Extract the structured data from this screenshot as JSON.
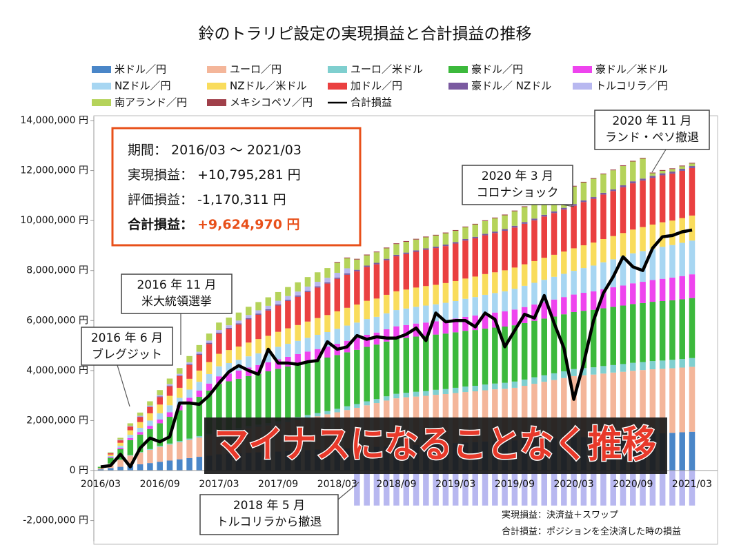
{
  "chart_data": {
    "type": "bar",
    "stacked": true,
    "title": "鈴のトラリピ設定の実現損益と合計損益の推移",
    "categories": [
      "2016/03",
      null,
      null,
      null,
      null,
      null,
      "2016/09",
      null,
      null,
      null,
      null,
      null,
      "2017/03",
      null,
      null,
      null,
      null,
      null,
      "2017/09",
      null,
      null,
      null,
      null,
      null,
      "2018/03",
      null,
      null,
      null,
      null,
      null,
      "2018/09",
      null,
      null,
      null,
      null,
      null,
      "2019/03",
      null,
      null,
      null,
      null,
      null,
      "2019/09",
      null,
      null,
      null,
      null,
      null,
      "2020/03",
      null,
      null,
      null,
      null,
      null,
      "2020/09",
      null,
      null,
      null,
      null,
      null,
      "2021/03"
    ],
    "ylim": [
      -2000000,
      14000000
    ],
    "yticks": [
      {
        "value": -2000000,
        "label": "-2,000,000 円"
      },
      {
        "value": 0,
        "label": "0 円"
      },
      {
        "value": 2000000,
        "label": "2,000,000 円"
      },
      {
        "value": 4000000,
        "label": "4,000,000 円"
      },
      {
        "value": 6000000,
        "label": "6,000,000 円"
      },
      {
        "value": 8000000,
        "label": "8,000,000 円"
      },
      {
        "value": 10000000,
        "label": "10,000,000 円"
      },
      {
        "value": 12000000,
        "label": "12,000,000 円"
      },
      {
        "value": 14000000,
        "label": "14,000,000 円"
      }
    ],
    "grid": false,
    "series": [
      {
        "name": "米ドル／円",
        "color": "#4a86c8",
        "values": [
          50000,
          100000,
          150000,
          200000,
          250000,
          300000,
          350000,
          400000,
          450000,
          500000,
          550000,
          600000,
          650000,
          670000,
          690000,
          710000,
          730000,
          740000,
          760000,
          780000,
          800000,
          820000,
          840000,
          860000,
          880000,
          890000,
          910000,
          930000,
          950000,
          970000,
          990000,
          1010000,
          1030000,
          1040000,
          1060000,
          1080000,
          1100000,
          1120000,
          1140000,
          1160000,
          1180000,
          1190000,
          1210000,
          1230000,
          1250000,
          1270000,
          1290000,
          1310000,
          1330000,
          1340000,
          1360000,
          1380000,
          1400000,
          1420000,
          1440000,
          1460000,
          1480000,
          1490000,
          1510000,
          1530000,
          1550000
        ]
      },
      {
        "name": "ユーロ／円",
        "color": "#f4b69a",
        "values": [
          50000,
          170000,
          280000,
          400000,
          470000,
          530000,
          600000,
          640000,
          680000,
          730000,
          770000,
          810000,
          850000,
          890000,
          930000,
          980000,
          1020000,
          1060000,
          1100000,
          1160000,
          1220000,
          1280000,
          1330000,
          1390000,
          1450000,
          1530000,
          1600000,
          1680000,
          1750000,
          1830000,
          1900000,
          1920000,
          1930000,
          1950000,
          1970000,
          1980000,
          2000000,
          2020000,
          2030000,
          2050000,
          2070000,
          2080000,
          2100000,
          2160000,
          2220000,
          2280000,
          2330000,
          2390000,
          2450000,
          2470000,
          2480000,
          2500000,
          2520000,
          2530000,
          2550000,
          2560000,
          2570000,
          2580000,
          2580000,
          2590000,
          2600000
        ]
      },
      {
        "name": "ユーロ／米ドル",
        "color": "#7fcfcf",
        "values": [
          0,
          10000,
          10000,
          20000,
          20000,
          30000,
          40000,
          40000,
          50000,
          50000,
          60000,
          60000,
          70000,
          80000,
          80000,
          90000,
          90000,
          100000,
          110000,
          110000,
          120000,
          120000,
          130000,
          130000,
          140000,
          150000,
          150000,
          160000,
          160000,
          170000,
          180000,
          180000,
          190000,
          190000,
          200000,
          200000,
          210000,
          220000,
          220000,
          230000,
          230000,
          240000,
          250000,
          250000,
          260000,
          260000,
          270000,
          270000,
          280000,
          290000,
          290000,
          300000,
          300000,
          310000,
          320000,
          320000,
          330000,
          330000,
          340000,
          340000,
          350000
        ]
      },
      {
        "name": "豪ドル／円",
        "color": "#3cb93c",
        "values": [
          50000,
          230000,
          420000,
          600000,
          700000,
          800000,
          900000,
          1070000,
          1230000,
          1400000,
          1570000,
          1730000,
          1900000,
          1930000,
          1970000,
          2000000,
          2030000,
          2070000,
          2100000,
          2110000,
          2120000,
          2130000,
          2130000,
          2140000,
          2150000,
          2160000,
          2170000,
          2180000,
          2180000,
          2190000,
          2200000,
          2200000,
          2210000,
          2210000,
          2210000,
          2220000,
          2220000,
          2230000,
          2230000,
          2240000,
          2240000,
          2250000,
          2250000,
          2260000,
          2260000,
          2270000,
          2270000,
          2280000,
          2280000,
          2290000,
          2300000,
          2310000,
          2330000,
          2340000,
          2350000,
          2360000,
          2370000,
          2380000,
          2380000,
          2390000,
          2400000
        ]
      },
      {
        "name": "豪ドル／米ドル",
        "color": "#ee44ee",
        "values": [
          0,
          30000,
          50000,
          80000,
          100000,
          130000,
          150000,
          180000,
          200000,
          230000,
          250000,
          280000,
          300000,
          310000,
          330000,
          340000,
          350000,
          360000,
          380000,
          390000,
          400000,
          410000,
          430000,
          440000,
          450000,
          460000,
          470000,
          480000,
          480000,
          490000,
          500000,
          510000,
          520000,
          530000,
          530000,
          540000,
          550000,
          560000,
          580000,
          590000,
          600000,
          610000,
          630000,
          640000,
          650000,
          660000,
          680000,
          690000,
          700000,
          720000,
          740000,
          760000,
          780000,
          800000,
          830000,
          850000,
          870000,
          890000,
          910000,
          930000,
          950000
        ]
      },
      {
        "name": "NZドル／円",
        "color": "#a7d6f2",
        "values": [
          0,
          40000,
          80000,
          130000,
          170000,
          210000,
          250000,
          280000,
          300000,
          330000,
          350000,
          380000,
          400000,
          420000,
          430000,
          450000,
          470000,
          480000,
          500000,
          520000,
          530000,
          550000,
          570000,
          580000,
          600000,
          610000,
          620000,
          630000,
          630000,
          640000,
          650000,
          660000,
          670000,
          680000,
          680000,
          690000,
          700000,
          720000,
          740000,
          760000,
          780000,
          800000,
          830000,
          850000,
          870000,
          890000,
          910000,
          930000,
          950000,
          990000,
          1030000,
          1080000,
          1120000,
          1160000,
          1200000,
          1230000,
          1250000,
          1280000,
          1300000,
          1330000,
          1350000
        ]
      },
      {
        "name": "NZドル／米ドル",
        "color": "#f9dc5c",
        "values": [
          0,
          60000,
          120000,
          180000,
          230000,
          290000,
          350000,
          380000,
          400000,
          430000,
          450000,
          480000,
          500000,
          520000,
          530000,
          550000,
          570000,
          580000,
          600000,
          620000,
          630000,
          650000,
          670000,
          680000,
          700000,
          710000,
          720000,
          730000,
          730000,
          740000,
          750000,
          760000,
          770000,
          780000,
          780000,
          790000,
          800000,
          810000,
          820000,
          830000,
          830000,
          840000,
          850000,
          860000,
          870000,
          880000,
          880000,
          890000,
          900000,
          910000,
          920000,
          930000,
          930000,
          940000,
          950000,
          960000,
          970000,
          980000,
          980000,
          990000,
          1000000
        ]
      },
      {
        "name": "加ドル／円",
        "color": "#ea4040",
        "values": [
          0,
          50000,
          100000,
          150000,
          200000,
          250000,
          300000,
          380000,
          470000,
          550000,
          630000,
          720000,
          800000,
          840000,
          880000,
          930000,
          970000,
          1010000,
          1050000,
          1090000,
          1130000,
          1180000,
          1220000,
          1260000,
          1300000,
          1320000,
          1330000,
          1350000,
          1370000,
          1380000,
          1400000,
          1420000,
          1430000,
          1450000,
          1470000,
          1480000,
          1500000,
          1520000,
          1530000,
          1550000,
          1570000,
          1580000,
          1600000,
          1620000,
          1630000,
          1650000,
          1670000,
          1680000,
          1700000,
          1730000,
          1750000,
          1780000,
          1800000,
          1830000,
          1850000,
          1860000,
          1870000,
          1880000,
          1880000,
          1890000,
          1900000
        ]
      },
      {
        "name": "豪ドル／ NZドル",
        "color": "#7a5aa0",
        "values": [
          0,
          0,
          10000,
          10000,
          20000,
          20000,
          30000,
          30000,
          30000,
          40000,
          40000,
          50000,
          50000,
          50000,
          50000,
          50000,
          50000,
          50000,
          50000,
          50000,
          50000,
          50000,
          50000,
          50000,
          50000,
          60000,
          60000,
          60000,
          60000,
          60000,
          60000,
          60000,
          60000,
          60000,
          60000,
          60000,
          60000,
          60000,
          60000,
          60000,
          60000,
          70000,
          70000,
          70000,
          70000,
          70000,
          70000,
          70000,
          70000,
          70000,
          70000,
          70000,
          70000,
          80000,
          80000,
          80000,
          80000,
          80000,
          80000,
          80000,
          80000
        ]
      },
      {
        "name": "トルコリラ／円",
        "color": "#b8b8f0",
        "values": [
          0,
          10000,
          20000,
          20000,
          30000,
          40000,
          50000,
          60000,
          60000,
          70000,
          80000,
          90000,
          100000,
          100000,
          110000,
          120000,
          130000,
          140000,
          140000,
          150000,
          160000,
          170000,
          180000,
          180000,
          190000,
          200000,
          -1400000,
          -1400000,
          -1400000,
          -1400000,
          -1400000,
          -1400000,
          -1400000,
          -1400000,
          -1400000,
          -1400000,
          -1400000,
          -1400000,
          -1400000,
          -1400000,
          -1400000,
          -1400000,
          -1400000,
          -1400000,
          -1400000,
          -1400000,
          -1400000,
          -1400000,
          -1400000,
          -1400000,
          -1400000,
          -1400000,
          -1400000,
          -1400000,
          -1400000,
          -1400000,
          -1400000,
          -1400000,
          -1400000,
          -1400000,
          -1400000
        ]
      },
      {
        "name": "南アランド／円",
        "color": "#b5d35a",
        "values": [
          0,
          30000,
          70000,
          100000,
          130000,
          170000,
          200000,
          220000,
          230000,
          250000,
          270000,
          280000,
          300000,
          310000,
          320000,
          330000,
          330000,
          340000,
          350000,
          360000,
          370000,
          380000,
          380000,
          390000,
          400000,
          400000,
          410000,
          410000,
          420000,
          420000,
          430000,
          430000,
          430000,
          440000,
          440000,
          450000,
          450000,
          470000,
          490000,
          510000,
          530000,
          550000,
          580000,
          600000,
          620000,
          640000,
          660000,
          680000,
          700000,
          710000,
          730000,
          740000,
          760000,
          770000,
          790000,
          800000,
          100000,
          100000,
          100000,
          100000,
          100000
        ]
      },
      {
        "name": "メキシコペソ／円",
        "color": "#a0404a",
        "values": [
          0,
          0,
          0,
          0,
          0,
          0,
          0,
          0,
          0,
          0,
          0,
          0,
          0,
          0,
          0,
          0,
          0,
          0,
          0,
          0,
          0,
          0,
          0,
          0,
          30000,
          30000,
          30000,
          30000,
          30000,
          30000,
          30000,
          30000,
          30000,
          30000,
          30000,
          30000,
          30000,
          30000,
          30000,
          30000,
          30000,
          30000,
          30000,
          30000,
          30000,
          30000,
          30000,
          30000,
          30000,
          30000,
          30000,
          30000,
          30000,
          30000,
          30000,
          30000,
          30000,
          30000,
          30000,
          30000,
          30000
        ]
      },
      {
        "name": "合計損益",
        "type": "line",
        "color": "#000000",
        "values": [
          150000,
          200000,
          650000,
          150000,
          900000,
          1300000,
          1150000,
          1350000,
          2700000,
          2700000,
          2650000,
          3000000,
          3500000,
          3950000,
          4200000,
          4000000,
          3850000,
          4850000,
          4300000,
          4300000,
          4250000,
          4350000,
          4400000,
          5150000,
          4850000,
          4950000,
          5400000,
          5250000,
          5350000,
          5300000,
          5300000,
          5450000,
          5700000,
          5200000,
          6300000,
          5950000,
          6000000,
          6000000,
          5750000,
          6300000,
          6050000,
          4950000,
          5600000,
          6250000,
          6100000,
          7000000,
          5900000,
          4900000,
          2850000,
          4300000,
          6000000,
          7100000,
          7750000,
          8550000,
          8150000,
          8000000,
          8900000,
          9350000,
          9400000,
          9550000,
          9620000
        ]
      }
    ],
    "summary": [
      {
        "label": "期間：",
        "value": "2016/03 ～ 2021/03"
      },
      {
        "label": "実現損益：",
        "value": "+10,795,281 円"
      },
      {
        "label": "評価損益：",
        "value": "-1,170,311 円"
      },
      {
        "label": "合計損益：",
        "value": "+9,624,970 円"
      }
    ],
    "callouts": [
      [
        "2016 年 6 月",
        "ブレグジット"
      ],
      [
        "2016 年 11 月",
        "米大統領選挙"
      ],
      [
        "2020 年 3 月",
        "コロナショック"
      ],
      [
        "2020 年 11 月",
        "ランド・ペソ撤退"
      ],
      [
        "2018 年 5 月",
        "トルコリラから撤退"
      ]
    ],
    "banner": "マイナスになることなく推移",
    "notes": [
      "実現損益：決済益＋スワップ",
      "合計損益：ポジションを全決済した時の損益"
    ]
  }
}
